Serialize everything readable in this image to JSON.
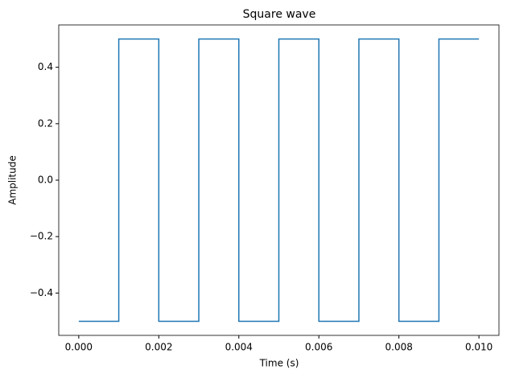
{
  "chart_data": {
    "type": "line",
    "title": "Square wave",
    "x_label": "Time (s)",
    "y_label": "Amplitude",
    "x": [
      0,
      0.001,
      0.001,
      0.002,
      0.002,
      0.003,
      0.003,
      0.004,
      0.004,
      0.005,
      0.005,
      0.006,
      0.006,
      0.007,
      0.007,
      0.008,
      0.008,
      0.009,
      0.009,
      0.01
    ],
    "series": [
      {
        "color": "#1f77b4",
        "values": [
          -0.5,
          -0.5,
          0.5,
          0.5,
          -0.5,
          -0.5,
          0.5,
          0.5,
          -0.5,
          -0.5,
          0.5,
          0.5,
          -0.5,
          -0.5,
          0.5,
          0.5,
          -0.5,
          -0.5,
          0.5,
          0.5
        ]
      }
    ],
    "xlim": [
      -0.0005,
      0.0105
    ],
    "xticks": [
      {
        "value": 0,
        "label": "0.000"
      },
      {
        "value": 0.002,
        "label": "0.002"
      },
      {
        "value": 0.004,
        "label": "0.004"
      },
      {
        "value": 0.006,
        "label": "0.006"
      },
      {
        "value": 0.008,
        "label": "0.008"
      },
      {
        "value": 0.01,
        "label": "0.010"
      }
    ],
    "ylim": [
      -0.55,
      0.55
    ],
    "yticks": [
      {
        "value": -0.4,
        "label": "−0.4"
      },
      {
        "value": -0.2,
        "label": "−0.2"
      },
      {
        "value": 0,
        "label": "0.0"
      },
      0.2,
      0.4
    ],
    "grid": false
  }
}
